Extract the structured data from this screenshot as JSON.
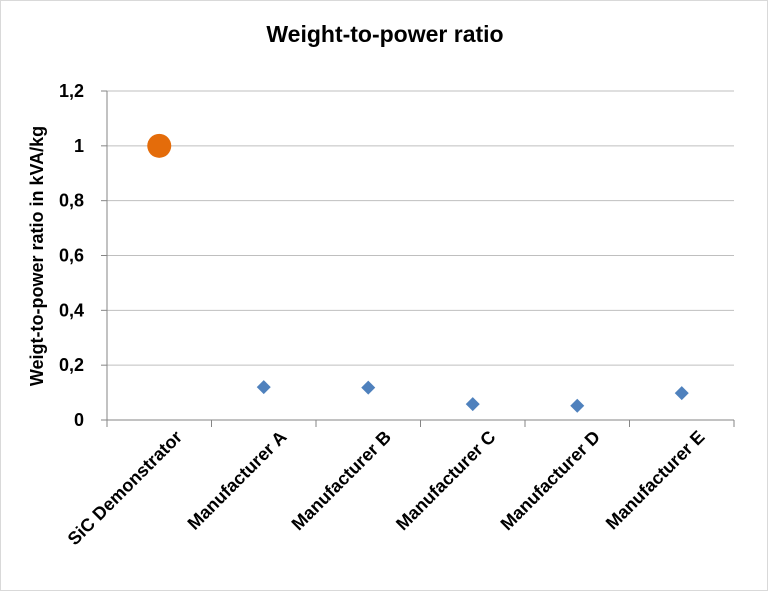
{
  "chart_data": {
    "type": "scatter",
    "title": "Weight-to-power ratio",
    "xlabel": "",
    "ylabel": "Weigt-to-power ratio in kVA/kg",
    "categories": [
      "SiC Demonstrator",
      "Manufacturer A",
      "Manufacturer B",
      "Manufacturer C",
      "Manufacturer D",
      "Manufacturer E"
    ],
    "values": [
      1.0,
      0.12,
      0.118,
      0.058,
      0.052,
      0.098
    ],
    "y_ticks": [
      "0",
      "0,2",
      "0,4",
      "0,6",
      "0,8",
      "1",
      "1,2"
    ],
    "ylim": [
      0,
      1.2
    ],
    "grid": true,
    "legend": "none",
    "colors": {
      "highlight_point": "#E46C0A",
      "series_point": "#4F81BD",
      "gridline": "#BFBFBF",
      "axis": "#868686"
    },
    "markers": [
      "circle",
      "diamond",
      "diamond",
      "diamond",
      "diamond",
      "diamond"
    ]
  }
}
